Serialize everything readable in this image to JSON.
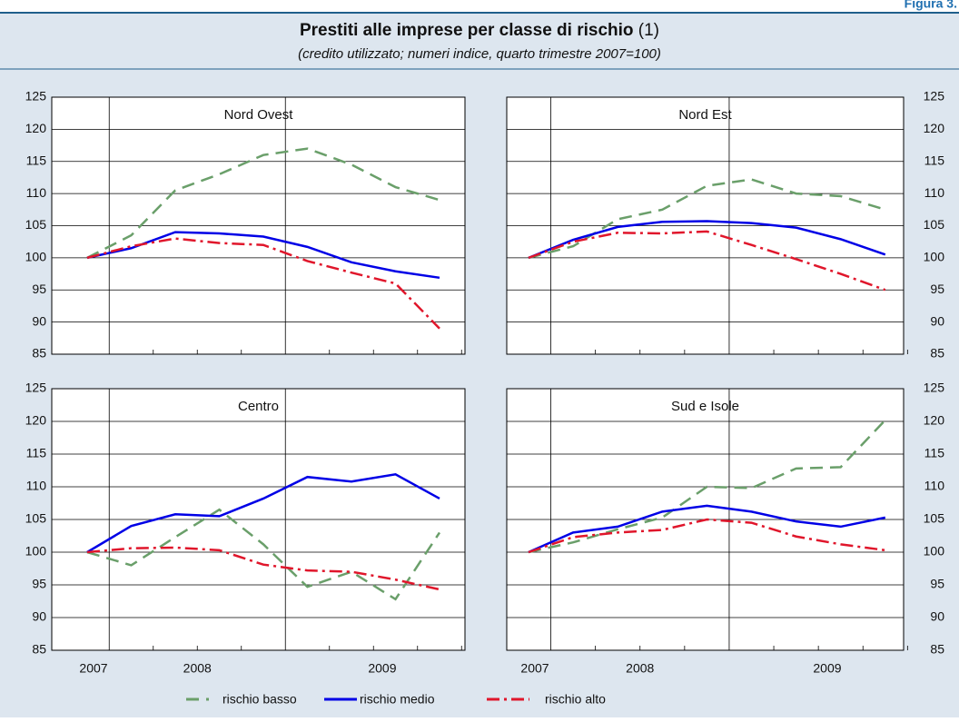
{
  "figure_label": "Figura 3.",
  "title": "Prestiti alle imprese per classe di rischio",
  "title_note": "(1)",
  "subtitle": "(credito utilizzato; numeri indice, quarto trimestre 2007=100)",
  "legend": [
    {
      "name": "rischio basso",
      "color": "#6a9f6a",
      "dash": "14 8"
    },
    {
      "name": "rischio medio",
      "color": "#0000e6",
      "dash": ""
    },
    {
      "name": "rischio alto",
      "color": "#e0162b",
      "dash": "14 5 3 5"
    }
  ],
  "chart_data": [
    {
      "type": "line",
      "title": "Nord Ovest",
      "ylim": [
        85,
        125
      ],
      "yticks": [
        85,
        90,
        95,
        100,
        105,
        110,
        115,
        120,
        125
      ],
      "series": [
        {
          "values": [
            100,
            103.5,
            110.5,
            113,
            116,
            117,
            114.5,
            111,
            109
          ]
        },
        {
          "values": [
            100,
            101.5,
            104,
            103.8,
            103.3,
            101.7,
            99.3,
            97.9,
            96.9
          ]
        },
        {
          "values": [
            100,
            101.8,
            103,
            102.3,
            102,
            99.5,
            97.7,
            96,
            89
          ]
        }
      ]
    },
    {
      "type": "line",
      "title": "Nord Est",
      "ylim": [
        85,
        125
      ],
      "yticks": [
        85,
        90,
        95,
        100,
        105,
        110,
        115,
        120,
        125
      ],
      "series": [
        {
          "values": [
            100,
            101.8,
            106,
            107.5,
            111.2,
            112.2,
            110,
            109.6,
            107.5
          ]
        },
        {
          "values": [
            100,
            102.8,
            104.8,
            105.6,
            105.7,
            105.4,
            104.7,
            102.9,
            100.5
          ]
        },
        {
          "values": [
            100,
            102.5,
            103.9,
            103.8,
            104.1,
            102,
            99.8,
            97.5,
            95
          ]
        }
      ]
    },
    {
      "type": "line",
      "title": "Centro",
      "ylim": [
        85,
        125
      ],
      "yticks": [
        85,
        90,
        95,
        100,
        105,
        110,
        115,
        120,
        125
      ],
      "xlabels": [
        "2007",
        "2008",
        "2009"
      ],
      "series": [
        {
          "values": [
            100,
            98,
            102.3,
            106.5,
            101.2,
            94.7,
            97,
            92.8,
            103
          ]
        },
        {
          "values": [
            100,
            104,
            105.8,
            105.5,
            108.2,
            111.5,
            110.8,
            111.9,
            108.2
          ]
        },
        {
          "values": [
            100,
            100.6,
            100.7,
            100.3,
            98.1,
            97.2,
            97,
            95.8,
            94.3
          ]
        }
      ]
    },
    {
      "type": "line",
      "title": "Sud e Isole",
      "ylim": [
        85,
        125
      ],
      "yticks": [
        85,
        90,
        95,
        100,
        105,
        110,
        115,
        120,
        125
      ],
      "xlabels": [
        "2007",
        "2008",
        "2009"
      ],
      "series": [
        {
          "values": [
            100,
            101.5,
            103.5,
            105.3,
            110,
            109.8,
            112.8,
            113,
            120.2
          ]
        },
        {
          "values": [
            100,
            103,
            103.9,
            106.2,
            107.1,
            106.2,
            104.7,
            103.9,
            105.3
          ]
        },
        {
          "values": [
            100,
            102.3,
            103,
            103.4,
            105,
            104.5,
            102.4,
            101.2,
            100.3
          ]
        }
      ]
    }
  ]
}
